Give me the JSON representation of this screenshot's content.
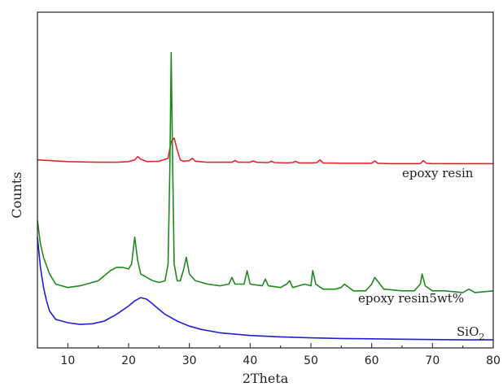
{
  "chart_data": {
    "type": "line",
    "xlabel": "2Theta",
    "ylabel": "Counts",
    "xlim": [
      5,
      80
    ],
    "xticks": [
      "10",
      "20",
      "30",
      "40",
      "50",
      "60",
      "70",
      "80"
    ],
    "y_ticks_shown": false,
    "grid": false,
    "legend": "none (series labelled inline at right)",
    "series": [
      {
        "name": "epoxy resin",
        "color": "#e8262c",
        "x": [
          5,
          10,
          15,
          18,
          20,
          21,
          21.5,
          22,
          23,
          25,
          26.5,
          27,
          27.5,
          28,
          28.5,
          29,
          30,
          30.5,
          31,
          33,
          35,
          37,
          37.5,
          38,
          40,
          40.5,
          41,
          43,
          43.5,
          44,
          46,
          47,
          47.5,
          48,
          50,
          51,
          51.5,
          52,
          55,
          58,
          60,
          60.5,
          61,
          63,
          65,
          68,
          68.5,
          69,
          70,
          72,
          75,
          78,
          80
        ],
        "y": [
          0.56,
          0.555,
          0.553,
          0.553,
          0.555,
          0.56,
          0.57,
          0.562,
          0.555,
          0.556,
          0.565,
          0.615,
          0.625,
          0.59,
          0.56,
          0.556,
          0.558,
          0.565,
          0.556,
          0.553,
          0.553,
          0.553,
          0.558,
          0.553,
          0.553,
          0.557,
          0.553,
          0.552,
          0.556,
          0.552,
          0.551,
          0.552,
          0.556,
          0.551,
          0.551,
          0.552,
          0.56,
          0.551,
          0.55,
          0.55,
          0.55,
          0.557,
          0.55,
          0.549,
          0.549,
          0.549,
          0.558,
          0.55,
          0.549,
          0.549,
          0.549,
          0.549,
          0.549
        ]
      },
      {
        "name": "epoxy resin5wt%",
        "color": "#1e8a1e",
        "x": [
          5,
          5.5,
          6,
          7,
          8,
          10,
          12,
          15,
          17,
          18,
          19,
          20,
          20.5,
          21,
          21.5,
          22,
          23,
          24,
          25,
          26,
          26.5,
          26.8,
          27,
          27.2,
          27.5,
          28,
          28.5,
          29,
          29.5,
          30,
          31,
          33,
          35,
          36.5,
          37,
          37.5,
          39,
          39.5,
          40,
          42,
          42.5,
          43,
          45,
          46,
          46.5,
          47,
          48,
          49,
          50,
          50.3,
          50.8,
          52,
          54,
          55,
          55.5,
          57,
          59,
          60,
          60.5,
          62,
          65,
          67,
          68,
          68.3,
          68.8,
          70,
          72,
          75,
          76,
          77,
          80
        ],
        "y": [
          0.38,
          0.31,
          0.27,
          0.22,
          0.19,
          0.18,
          0.185,
          0.2,
          0.23,
          0.24,
          0.24,
          0.235,
          0.25,
          0.33,
          0.26,
          0.22,
          0.21,
          0.2,
          0.195,
          0.2,
          0.25,
          0.55,
          0.88,
          0.6,
          0.25,
          0.2,
          0.2,
          0.23,
          0.27,
          0.22,
          0.2,
          0.19,
          0.185,
          0.19,
          0.21,
          0.19,
          0.19,
          0.23,
          0.19,
          0.185,
          0.205,
          0.185,
          0.18,
          0.19,
          0.2,
          0.18,
          0.185,
          0.19,
          0.185,
          0.23,
          0.19,
          0.175,
          0.175,
          0.18,
          0.19,
          0.17,
          0.17,
          0.19,
          0.21,
          0.175,
          0.17,
          0.17,
          0.19,
          0.22,
          0.185,
          0.17,
          0.17,
          0.165,
          0.175,
          0.165,
          0.17
        ]
      },
      {
        "name": "SiO2",
        "color": "#1f1fd6",
        "x": [
          5,
          5.5,
          6,
          6.5,
          7,
          8,
          10,
          12,
          14,
          16,
          18,
          20,
          21,
          22,
          23,
          24,
          25,
          26,
          27,
          28,
          30,
          32,
          35,
          40,
          45,
          50,
          55,
          60,
          65,
          70,
          75,
          80
        ],
        "y": [
          0.33,
          0.24,
          0.18,
          0.14,
          0.11,
          0.085,
          0.075,
          0.07,
          0.072,
          0.08,
          0.1,
          0.125,
          0.14,
          0.15,
          0.145,
          0.13,
          0.115,
          0.1,
          0.09,
          0.08,
          0.065,
          0.055,
          0.045,
          0.037,
          0.033,
          0.03,
          0.028,
          0.027,
          0.026,
          0.025,
          0.024,
          0.024
        ]
      }
    ],
    "annotations": {
      "epoxy_resin": "epoxy resin",
      "epoxy_resin_5wt": "epoxy resin5wt%",
      "sio2_base": "SiO",
      "sio2_sub": "2"
    }
  }
}
